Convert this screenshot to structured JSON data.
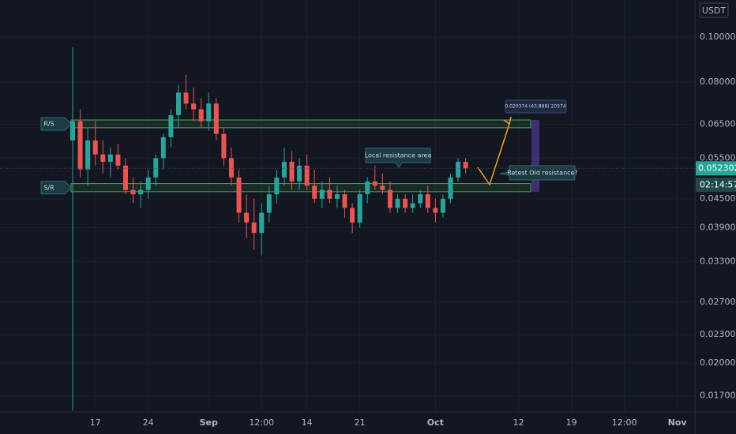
{
  "chart_data": {
    "type": "candlestick",
    "currency": "USDT",
    "log_scale": true,
    "grid": true,
    "up_color": "#26a69a",
    "down_color": "#ef5350",
    "ylim": [
      0.0157,
      0.1201
    ],
    "yticks": [
      {
        "value": 0.1,
        "label": "0.100000"
      },
      {
        "value": 0.08,
        "label": "0.080000"
      },
      {
        "value": 0.065,
        "label": "0.065000"
      },
      {
        "value": 0.055,
        "label": "0.055000"
      },
      {
        "value": 0.045,
        "label": "0.045000"
      },
      {
        "value": 0.039,
        "label": "0.039000"
      },
      {
        "value": 0.033,
        "label": "0.033000"
      },
      {
        "value": 0.027,
        "label": "0.027000"
      },
      {
        "value": 0.023,
        "label": "0.023000"
      },
      {
        "value": 0.02,
        "label": "0.020000"
      },
      {
        "value": 0.017,
        "label": "0.017000"
      }
    ],
    "categories": [
      null,
      null,
      null,
      "17",
      null,
      null,
      null,
      null,
      null,
      null,
      "24",
      null,
      null,
      null,
      null,
      null,
      null,
      null,
      "Sep",
      null,
      null,
      null,
      null,
      null,
      null,
      "12:00",
      null,
      null,
      null,
      null,
      null,
      "14",
      null,
      null,
      null,
      null,
      null,
      null,
      "21",
      null,
      null,
      null,
      null,
      null,
      null,
      null,
      null,
      null,
      "Oct",
      null,
      null,
      null,
      null,
      null,
      null,
      null,
      null,
      null,
      null,
      "12",
      null,
      null,
      null,
      null,
      null,
      null,
      "19",
      null,
      null,
      null,
      null,
      null,
      null,
      "12:00",
      null,
      null,
      null,
      null,
      null,
      null,
      "Nov",
      null,
      null
    ],
    "open": [
      0.06,
      0.066,
      0.052,
      0.06,
      0.056,
      0.054,
      0.056,
      0.053,
      0.047,
      0.046,
      0.047,
      0.05,
      0.055,
      0.061,
      0.068,
      0.076,
      0.072,
      0.07,
      0.066,
      0.072,
      0.062,
      0.055,
      0.05,
      0.042,
      0.04,
      0.038,
      0.042,
      0.046,
      0.05,
      0.054,
      0.049,
      0.053,
      0.048,
      0.045,
      0.047,
      0.045,
      0.046,
      0.043,
      0.04,
      0.046,
      0.049,
      0.048,
      0.047,
      0.043,
      0.045,
      0.043,
      0.044,
      0.046,
      0.043,
      0.042,
      0.045,
      0.05,
      0.054,
      null,
      null,
      null,
      null,
      null,
      null,
      null,
      null,
      null,
      null,
      null,
      null,
      null,
      null,
      null,
      null,
      null,
      null,
      null,
      null,
      null,
      null,
      null,
      null,
      null,
      null,
      null,
      null,
      null,
      null
    ],
    "high": [
      0.095,
      0.07,
      0.064,
      0.066,
      0.06,
      0.058,
      0.059,
      0.055,
      0.05,
      0.049,
      0.052,
      0.056,
      0.062,
      0.07,
      0.079,
      0.083,
      0.078,
      0.074,
      0.076,
      0.074,
      0.064,
      0.058,
      0.052,
      0.046,
      0.045,
      0.044,
      0.048,
      0.052,
      0.058,
      0.057,
      0.055,
      0.056,
      0.052,
      0.049,
      0.05,
      0.048,
      0.047,
      0.044,
      0.047,
      0.05,
      0.053,
      0.051,
      0.049,
      0.046,
      0.046,
      0.046,
      0.047,
      0.048,
      0.045,
      0.046,
      0.051,
      0.055,
      0.055,
      null,
      null,
      null,
      null,
      null,
      null,
      null,
      null,
      null,
      null,
      null,
      null,
      null,
      null,
      null,
      null,
      null,
      null,
      null,
      null,
      null,
      null,
      null,
      null,
      null,
      null,
      null,
      null,
      null,
      null
    ],
    "low": [
      0.0158,
      0.05,
      0.048,
      0.053,
      0.051,
      0.05,
      0.052,
      0.046,
      0.044,
      0.043,
      0.045,
      0.048,
      0.052,
      0.058,
      0.064,
      0.07,
      0.066,
      0.064,
      0.063,
      0.06,
      0.053,
      0.048,
      0.04,
      0.037,
      0.035,
      0.034,
      0.04,
      0.044,
      0.048,
      0.047,
      0.047,
      0.047,
      0.044,
      0.043,
      0.044,
      0.043,
      0.041,
      0.038,
      0.039,
      0.044,
      0.047,
      0.046,
      0.042,
      0.042,
      0.042,
      0.042,
      0.043,
      0.042,
      0.04,
      0.041,
      0.044,
      0.049,
      0.051,
      null,
      null,
      null,
      null,
      null,
      null,
      null,
      null,
      null,
      null,
      null,
      null,
      null,
      null,
      null,
      null,
      null,
      null,
      null,
      null,
      null,
      null,
      null,
      null,
      null,
      null,
      null,
      null,
      null,
      null
    ],
    "close": [
      0.066,
      0.052,
      0.06,
      0.056,
      0.054,
      0.056,
      0.053,
      0.047,
      0.046,
      0.047,
      0.05,
      0.055,
      0.061,
      0.068,
      0.076,
      0.072,
      0.07,
      0.066,
      0.072,
      0.062,
      0.055,
      0.05,
      0.042,
      0.04,
      0.038,
      0.042,
      0.046,
      0.05,
      0.054,
      0.049,
      0.053,
      0.048,
      0.045,
      0.047,
      0.045,
      0.046,
      0.043,
      0.04,
      0.046,
      0.049,
      0.048,
      0.047,
      0.043,
      0.045,
      0.043,
      0.044,
      0.046,
      0.043,
      0.042,
      0.045,
      0.05,
      0.054,
      0.052302,
      null,
      null,
      null,
      null,
      null,
      null,
      null,
      null,
      null,
      null,
      null,
      null,
      null,
      null,
      null,
      null,
      null,
      null,
      null,
      null,
      null,
      null,
      null,
      null,
      null,
      null,
      null,
      null,
      null,
      null
    ],
    "last_price_label": "0.052302",
    "countdown": "02:14:57",
    "zones": [
      {
        "label": "R/S",
        "range": [
          0.0639,
          0.0664
        ]
      },
      {
        "label": "S/R",
        "range": [
          0.0466,
          0.0485
        ]
      }
    ],
    "annotations": [
      "Local resistance area",
      "Retest Old resistance?",
      "0.020374 (43.898) 20374"
    ]
  }
}
